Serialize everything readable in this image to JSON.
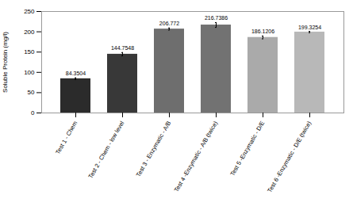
{
  "chart_data": {
    "type": "bar",
    "categories": [
      "Test 1 - Chem",
      "Test 2 - Chem - low level",
      "Test 3 - Enzymatic - A/B",
      "Test 4 -Enzymatic - A/B (twice)",
      "Test 5 -Enzymatic - D/E",
      "Test 6 -Enzymatic - D/E (twice)"
    ],
    "values": [
      84.3504,
      144.7548,
      206.772,
      216.7386,
      186.1206,
      199.3254
    ],
    "errors": [
      2.0,
      4.0,
      2.5,
      6.0,
      3.5,
      1.5
    ],
    "colors": [
      "#2b2b2b",
      "#383838",
      "#6e6e6e",
      "#727272",
      "#aaaaaa",
      "#b8b8b8"
    ],
    "ylabel": "Soluble Protein (mg/l)",
    "ylim": [
      0,
      250
    ],
    "yticks": [
      0,
      50,
      100,
      150,
      200,
      250
    ],
    "grid": false,
    "data_labels": true
  }
}
